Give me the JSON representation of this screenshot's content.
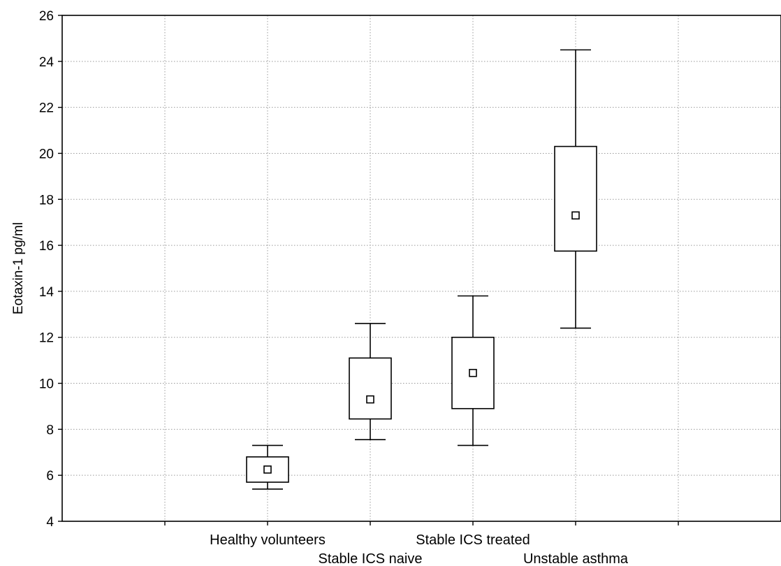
{
  "chart_data": {
    "type": "box",
    "title": "",
    "xlabel": "",
    "ylabel": "Eotaxin-1 pg/ml",
    "ylim": [
      4,
      26
    ],
    "yticks": [
      "4",
      "6",
      "8",
      "10",
      "12",
      "14",
      "16",
      "18",
      "20",
      "22",
      "24",
      "26"
    ],
    "grid": true,
    "categories": [
      "Healthy volunteers",
      "Stable ICS naive",
      "Stable ICS treated",
      "Unstable asthma"
    ],
    "series": [
      {
        "category": "Healthy volunteers",
        "whisker_low": 5.4,
        "box_low": 5.7,
        "median": 6.25,
        "box_high": 6.8,
        "whisker_high": 7.3
      },
      {
        "category": "Stable ICS naive",
        "whisker_low": 7.55,
        "box_low": 8.45,
        "median": 9.3,
        "box_high": 11.1,
        "whisker_high": 12.6
      },
      {
        "category": "Stable ICS treated",
        "whisker_low": 7.3,
        "box_low": 8.9,
        "median": 10.45,
        "box_high": 12.0,
        "whisker_high": 13.8
      },
      {
        "category": "Unstable asthma",
        "whisker_low": 12.4,
        "box_low": 15.75,
        "median": 17.3,
        "box_high": 20.3,
        "whisker_high": 24.5
      }
    ]
  }
}
